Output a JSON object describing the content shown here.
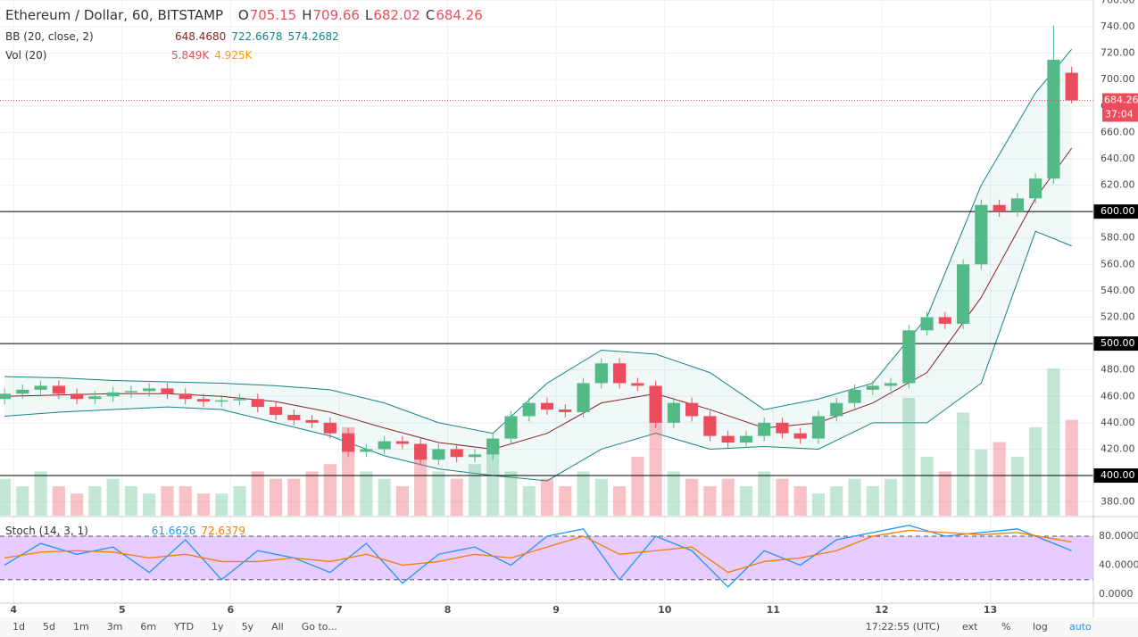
{
  "chart_data": {
    "type": "candlestick",
    "title": "Ethereum / Dollar, 60, BITSTAMP",
    "header": {
      "labels": [
        "O",
        "H",
        "L",
        "C"
      ],
      "values": [
        705.15,
        709.66,
        682.02,
        684.26
      ]
    },
    "indicators": [
      {
        "name": "BB (20, close, 2)",
        "values": [
          "648.4680",
          "722.6678",
          "574.2682"
        ],
        "colors": [
          "#872323",
          "#138484",
          "#138484"
        ]
      },
      {
        "name": "Vol (20)",
        "values": [
          "5.849K",
          "4.925K"
        ],
        "colors": [
          "#eb4d5c",
          "#ff9800"
        ]
      }
    ],
    "x": [
      -2,
      2,
      6,
      10,
      14,
      18,
      22,
      26,
      30,
      34,
      38,
      42,
      46,
      50,
      54,
      58,
      62,
      66,
      70,
      74,
      78,
      82,
      86,
      90,
      94,
      98,
      102,
      106,
      110,
      114,
      118,
      122,
      126,
      130,
      134,
      138,
      142,
      146,
      150,
      154,
      158,
      162,
      166,
      170,
      174,
      178,
      182,
      186,
      190,
      194,
      198,
      202,
      206,
      210,
      214,
      218,
      222,
      226,
      230,
      234
    ],
    "open": [
      458,
      462,
      465,
      468,
      462,
      458,
      460,
      463,
      464,
      466,
      462,
      458,
      456,
      457,
      458,
      452,
      446,
      442,
      440,
      432,
      418,
      420,
      426,
      424,
      412,
      420,
      414,
      416,
      428,
      445,
      455,
      450,
      448,
      470,
      485,
      470,
      468,
      440,
      455,
      445,
      430,
      425,
      430,
      440,
      432,
      428,
      445,
      455,
      465,
      468,
      470,
      510,
      520,
      515,
      560,
      605,
      600,
      610,
      625,
      705.15
    ],
    "high": [
      466,
      469,
      472,
      472,
      466,
      464,
      467,
      468,
      470,
      470,
      466,
      462,
      461,
      462,
      462,
      456,
      450,
      446,
      444,
      436,
      424,
      430,
      430,
      428,
      424,
      424,
      420,
      432,
      449,
      459,
      459,
      454,
      474,
      489,
      489,
      474,
      472,
      459,
      459,
      449,
      434,
      434,
      444,
      444,
      436,
      449,
      459,
      469,
      472,
      474,
      514,
      524,
      524,
      564,
      609,
      609,
      614,
      629,
      741,
      709.66
    ],
    "low": [
      454,
      458,
      461,
      458,
      454,
      454,
      456,
      459,
      460,
      458,
      454,
      452,
      452,
      453,
      448,
      442,
      438,
      436,
      428,
      414,
      414,
      416,
      420,
      408,
      408,
      410,
      410,
      412,
      424,
      441,
      446,
      444,
      444,
      466,
      466,
      464,
      436,
      436,
      441,
      426,
      421,
      421,
      426,
      428,
      424,
      424,
      441,
      451,
      461,
      464,
      466,
      506,
      511,
      511,
      556,
      596,
      596,
      606,
      621,
      682.02
    ],
    "close": [
      462,
      465,
      468,
      462,
      458,
      460,
      463,
      464,
      466,
      462,
      458,
      456,
      457,
      458,
      452,
      446,
      442,
      440,
      432,
      418,
      420,
      426,
      424,
      412,
      420,
      414,
      416,
      428,
      445,
      455,
      450,
      448,
      470,
      485,
      470,
      468,
      440,
      455,
      445,
      430,
      425,
      430,
      440,
      432,
      428,
      445,
      455,
      465,
      468,
      470,
      510,
      520,
      515,
      560,
      605,
      600,
      610,
      625,
      715,
      684.26
    ],
    "volume": [
      5,
      4,
      6,
      4,
      3,
      4,
      5,
      4,
      3,
      4,
      4,
      3,
      3,
      4,
      6,
      5,
      5,
      6,
      7,
      12,
      6,
      5,
      4,
      8,
      6,
      5,
      7,
      10,
      6,
      4,
      5,
      4,
      6,
      5,
      4,
      8,
      15,
      6,
      5,
      4,
      5,
      4,
      6,
      5,
      4,
      3,
      4,
      5,
      4,
      5,
      16,
      8,
      6,
      14,
      9,
      10,
      8,
      12,
      20,
      13
    ],
    "vol_lim": [
      0,
      70
    ],
    "up_color": "#53b987",
    "down_color": "#eb4d5c",
    "bb": {
      "x": [
        -2,
        10,
        22,
        34,
        46,
        58,
        70,
        82,
        94,
        106,
        118,
        130,
        142,
        154,
        166,
        178,
        190,
        202,
        214,
        226,
        234
      ],
      "mid": [
        460,
        461,
        462,
        462,
        460,
        456,
        448,
        436,
        425,
        420,
        432,
        455,
        462,
        450,
        436,
        440,
        455,
        478,
        535,
        610,
        648
      ],
      "upper": [
        475,
        474,
        472,
        471,
        470,
        468,
        465,
        455,
        440,
        432,
        470,
        495,
        492,
        478,
        450,
        458,
        470,
        520,
        620,
        690,
        723
      ],
      "lower": [
        445,
        448,
        450,
        452,
        450,
        440,
        430,
        415,
        405,
        400,
        396,
        420,
        432,
        420,
        422,
        420,
        440,
        440,
        470,
        585,
        574
      ]
    },
    "xlim": [
      -3,
      238.8
    ],
    "xticks": [
      {
        "value": 0,
        "label": "4"
      },
      {
        "value": 24,
        "label": "5"
      },
      {
        "value": 48,
        "label": "6"
      },
      {
        "value": 72,
        "label": "7"
      },
      {
        "value": 96,
        "label": "8"
      },
      {
        "value": 120,
        "label": "9"
      },
      {
        "value": 144,
        "label": "10"
      },
      {
        "value": 168,
        "label": "11"
      },
      {
        "value": 192,
        "label": "12"
      },
      {
        "value": 216,
        "label": "13"
      }
    ],
    "ylim": [
      369.6,
      760.3
    ],
    "yticks": [
      {
        "value": 380,
        "label": "380.00"
      },
      {
        "value": 400,
        "label": "400.00"
      },
      {
        "value": 420,
        "label": "420.00"
      },
      {
        "value": 440,
        "label": "440.00"
      },
      {
        "value": 460,
        "label": "460.00"
      },
      {
        "value": 480,
        "label": "480.00"
      },
      {
        "value": 500,
        "label": "500.00"
      },
      {
        "value": 520,
        "label": "520.00"
      },
      {
        "value": 540,
        "label": "540.00"
      },
      {
        "value": 560,
        "label": "560.00"
      },
      {
        "value": 580,
        "label": "580.00"
      },
      {
        "value": 600,
        "label": "600.00"
      },
      {
        "value": 620,
        "label": "620.00"
      },
      {
        "value": 640,
        "label": "640.00"
      },
      {
        "value": 660,
        "label": "660.00"
      },
      {
        "value": 680,
        "label": "680.00"
      },
      {
        "value": 700,
        "label": "700.00"
      },
      {
        "value": 720,
        "label": "720.00"
      },
      {
        "value": 740,
        "label": "740.00"
      },
      {
        "value": 760,
        "label": "760.00"
      }
    ],
    "levels": [
      {
        "value": 600,
        "label": "600.00"
      },
      {
        "value": 500,
        "label": "500.00"
      },
      {
        "value": 400,
        "label": "400.00"
      }
    ],
    "last_price": 684.26,
    "countdown": "37:04",
    "stoch": {
      "name": "Stoch (14, 3, 1)",
      "legend": [
        "61.6626",
        "72.6379"
      ],
      "x": [
        -2,
        6,
        14,
        22,
        30,
        38,
        46,
        54,
        62,
        70,
        78,
        86,
        94,
        102,
        110,
        118,
        126,
        134,
        142,
        150,
        158,
        166,
        174,
        182,
        190,
        198,
        206,
        214,
        222,
        234
      ],
      "k": [
        40,
        70,
        55,
        65,
        30,
        75,
        20,
        60,
        50,
        30,
        70,
        15,
        55,
        65,
        40,
        80,
        90,
        20,
        80,
        60,
        10,
        60,
        40,
        75,
        85,
        95,
        80,
        85,
        90,
        60
      ],
      "d": [
        50,
        58,
        60,
        58,
        50,
        55,
        45,
        45,
        50,
        45,
        55,
        40,
        45,
        55,
        50,
        65,
        80,
        55,
        60,
        65,
        30,
        45,
        50,
        60,
        80,
        88,
        85,
        82,
        85,
        72
      ],
      "ylim": [
        -12.3,
        105.8
      ],
      "yticks": [
        {
          "value": 0,
          "label": "0.0000"
        },
        {
          "value": 40,
          "label": "40.0000"
        },
        {
          "value": 80,
          "label": "80.0000"
        }
      ],
      "band": [
        20,
        80
      ]
    },
    "toolbar": {
      "ranges": [
        "1d",
        "5d",
        "1m",
        "3m",
        "6m",
        "YTD",
        "1y",
        "5y",
        "All",
        "Go to..."
      ],
      "time": "17:22:55 (UTC)",
      "options": [
        "ext",
        "%",
        "log",
        "auto"
      ]
    }
  }
}
